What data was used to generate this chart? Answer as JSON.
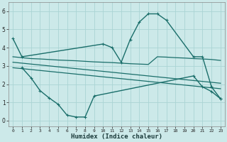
{
  "xlabel": "Humidex (Indice chaleur)",
  "background_color": "#cce9e9",
  "grid_color": "#aad4d4",
  "line_color": "#1a6e6a",
  "ylim": [
    -0.3,
    6.5
  ],
  "xlim": [
    -0.5,
    23.5
  ],
  "line1_x": [
    0,
    1,
    10,
    11,
    12,
    13,
    14,
    15,
    16,
    17,
    20,
    21,
    22,
    23
  ],
  "line1_y": [
    4.5,
    3.5,
    4.2,
    4.0,
    3.2,
    4.45,
    5.4,
    5.85,
    5.85,
    5.5,
    3.5,
    3.5,
    1.85,
    1.2
  ],
  "line2_x": [
    0,
    1,
    2,
    3,
    4,
    5,
    6,
    7,
    8,
    9,
    10,
    11,
    12,
    13,
    14,
    15,
    16,
    17,
    18,
    19,
    20,
    21,
    22,
    23
  ],
  "line2_y": [
    3.5,
    3.45,
    3.4,
    3.38,
    3.35,
    3.32,
    3.3,
    3.28,
    3.25,
    3.22,
    3.2,
    3.18,
    3.15,
    3.12,
    3.1,
    3.08,
    3.5,
    3.48,
    3.45,
    3.43,
    3.4,
    3.38,
    3.35,
    3.3
  ],
  "line3_x": [
    0,
    1,
    2,
    3,
    4,
    5,
    6,
    7,
    8,
    9,
    10,
    11,
    12,
    13,
    14,
    15,
    16,
    17,
    18,
    19,
    20,
    21,
    22,
    23
  ],
  "line3_y": [
    3.2,
    3.15,
    3.1,
    3.05,
    3.0,
    2.95,
    2.9,
    2.85,
    2.8,
    2.75,
    2.7,
    2.65,
    2.6,
    2.55,
    2.5,
    2.45,
    2.4,
    2.35,
    2.3,
    2.25,
    2.2,
    2.15,
    2.1,
    2.05
  ],
  "line4_x": [
    0,
    1,
    2,
    3,
    4,
    5,
    6,
    7,
    8,
    9,
    10,
    11,
    12,
    13,
    14,
    15,
    16,
    17,
    18,
    19,
    20,
    21,
    22,
    23
  ],
  "line4_y": [
    2.9,
    2.85,
    2.8,
    2.75,
    2.7,
    2.65,
    2.6,
    2.55,
    2.5,
    2.45,
    2.4,
    2.35,
    2.3,
    2.25,
    2.2,
    2.15,
    2.1,
    2.05,
    2.0,
    1.95,
    1.9,
    1.85,
    1.8,
    1.75
  ],
  "line5_x": [
    1,
    2,
    3,
    4,
    5,
    6,
    7,
    8,
    9,
    20,
    21,
    22,
    23
  ],
  "line5_y": [
    2.9,
    2.35,
    1.65,
    1.25,
    0.9,
    0.3,
    0.2,
    0.2,
    1.35,
    2.45,
    1.85,
    1.6,
    1.2
  ]
}
